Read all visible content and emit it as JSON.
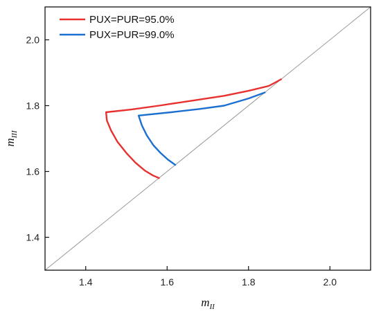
{
  "chart_data": {
    "type": "line",
    "title": "",
    "xlabel": {
      "main": "m",
      "sub": "II"
    },
    "ylabel": {
      "main": "m",
      "sub": "III"
    },
    "xlim": [
      1.3,
      2.1
    ],
    "ylim": [
      1.3,
      2.1
    ],
    "x_ticks": [
      "1.4",
      "1.6",
      "1.8",
      "2.0"
    ],
    "y_ticks": [
      "1.4",
      "1.6",
      "1.8",
      "2.0"
    ],
    "grid": false,
    "legend_position": "top-left",
    "reference_line": {
      "from": [
        1.3,
        1.3
      ],
      "to": [
        2.1,
        2.1
      ],
      "color": "#9a9a9a"
    },
    "series": [
      {
        "name": "PUX=PUR=95.0%",
        "color": "#e8312f",
        "points": [
          [
            1.88,
            1.88
          ],
          [
            1.85,
            1.86
          ],
          [
            1.8,
            1.845
          ],
          [
            1.74,
            1.83
          ],
          [
            1.66,
            1.815
          ],
          [
            1.58,
            1.8
          ],
          [
            1.51,
            1.788
          ],
          [
            1.45,
            1.78
          ],
          [
            1.452,
            1.755
          ],
          [
            1.462,
            1.725
          ],
          [
            1.478,
            1.69
          ],
          [
            1.5,
            1.656
          ],
          [
            1.522,
            1.627
          ],
          [
            1.545,
            1.603
          ],
          [
            1.565,
            1.588
          ],
          [
            1.58,
            1.58
          ]
        ]
      },
      {
        "name": "PUX=PUR=99.0%",
        "color": "#1a6fd1",
        "points": [
          [
            1.84,
            1.84
          ],
          [
            1.8,
            1.822
          ],
          [
            1.74,
            1.8
          ],
          [
            1.68,
            1.79
          ],
          [
            1.61,
            1.78
          ],
          [
            1.53,
            1.77
          ],
          [
            1.538,
            1.74
          ],
          [
            1.55,
            1.71
          ],
          [
            1.566,
            1.68
          ],
          [
            1.584,
            1.656
          ],
          [
            1.602,
            1.636
          ],
          [
            1.62,
            1.62
          ]
        ]
      }
    ]
  }
}
